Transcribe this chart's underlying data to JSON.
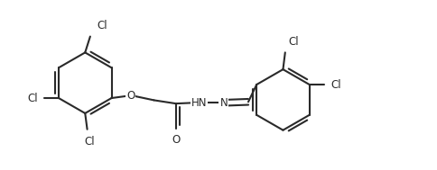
{
  "line_color": "#2a2a2a",
  "bg_color": "#ffffff",
  "line_width": 1.5,
  "font_size": 8.5,
  "figsize": [
    4.84,
    1.89
  ],
  "dpi": 100,
  "xlim": [
    0.0,
    10.0
  ],
  "ylim": [
    0.0,
    4.0
  ]
}
